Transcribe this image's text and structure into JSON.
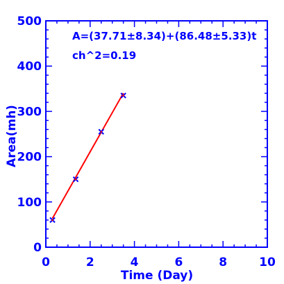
{
  "chart_data": {
    "type": "scatter",
    "xlabel": "Time (Day)",
    "ylabel": "Area(mh)",
    "xlim": [
      0,
      10
    ],
    "ylim": [
      0,
      500
    ],
    "x_ticks": [
      "0",
      "2",
      "4",
      "6",
      "8",
      "10"
    ],
    "y_ticks": [
      "0",
      "100",
      "200",
      "300",
      "400",
      "500"
    ],
    "annotations": [
      "A=(37.71±8.34)+(86.48±5.33)t",
      "ch^2=0.19"
    ],
    "series": [
      {
        "kind": "points",
        "x": [
          0.3,
          1.35,
          2.5,
          3.5
        ],
        "y": [
          60,
          150,
          255,
          335
        ],
        "color": "#0000ff",
        "marker_fill": "#ff0000"
      }
    ],
    "fit": {
      "intercept": 37.71,
      "slope": 86.48,
      "x_range": [
        0.3,
        3.5
      ],
      "color": "#ff0000"
    },
    "grid": false,
    "axis_color": "#0000ff"
  }
}
